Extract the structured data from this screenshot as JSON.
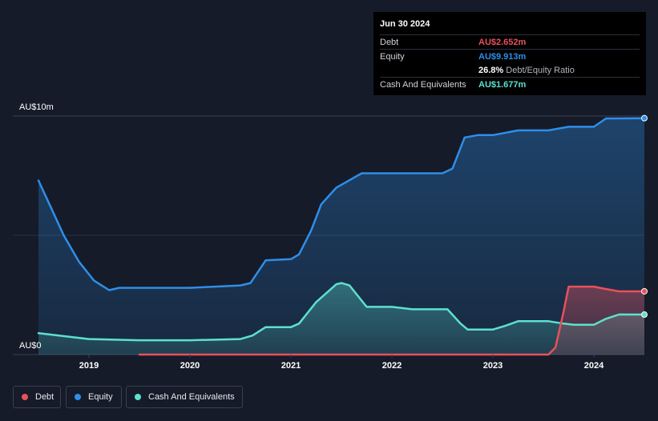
{
  "chart_data": {
    "type": "area",
    "title": "",
    "y_axis": {
      "min": 0,
      "max": 10,
      "unit": "AU$m",
      "tick_labels": [
        "AU$10m",
        "AU$0"
      ]
    },
    "x_axis": {
      "min": 2018.5,
      "max": 2024.5,
      "tick_labels": [
        "2019",
        "2020",
        "2021",
        "2022",
        "2023",
        "2024"
      ],
      "tick_values": [
        2019,
        2020,
        2021,
        2022,
        2023,
        2024
      ]
    },
    "series": [
      {
        "name": "Equity",
        "color": "#2e8ee8",
        "points": [
          [
            2018.5,
            7.3
          ],
          [
            2018.62,
            6.2
          ],
          [
            2018.75,
            5.0
          ],
          [
            2018.9,
            3.9
          ],
          [
            2019.05,
            3.1
          ],
          [
            2019.2,
            2.7
          ],
          [
            2019.3,
            2.8
          ],
          [
            2019.5,
            2.8
          ],
          [
            2019.75,
            2.8
          ],
          [
            2020.0,
            2.8
          ],
          [
            2020.25,
            2.85
          ],
          [
            2020.5,
            2.9
          ],
          [
            2020.6,
            3.0
          ],
          [
            2020.75,
            3.95
          ],
          [
            2021.0,
            4.0
          ],
          [
            2021.08,
            4.2
          ],
          [
            2021.2,
            5.2
          ],
          [
            2021.3,
            6.3
          ],
          [
            2021.45,
            7.0
          ],
          [
            2021.7,
            7.6
          ],
          [
            2022.0,
            7.6
          ],
          [
            2022.5,
            7.6
          ],
          [
            2022.6,
            7.8
          ],
          [
            2022.72,
            9.1
          ],
          [
            2022.85,
            9.2
          ],
          [
            2023.0,
            9.2
          ],
          [
            2023.25,
            9.4
          ],
          [
            2023.55,
            9.4
          ],
          [
            2023.75,
            9.55
          ],
          [
            2024.0,
            9.55
          ],
          [
            2024.12,
            9.9
          ],
          [
            2024.5,
            9.91
          ]
        ]
      },
      {
        "name": "Cash And Equivalents",
        "color": "#5ee0cf",
        "points": [
          [
            2018.5,
            0.9
          ],
          [
            2019.0,
            0.65
          ],
          [
            2019.5,
            0.6
          ],
          [
            2020.0,
            0.6
          ],
          [
            2020.5,
            0.65
          ],
          [
            2020.62,
            0.8
          ],
          [
            2020.75,
            1.15
          ],
          [
            2021.0,
            1.15
          ],
          [
            2021.08,
            1.3
          ],
          [
            2021.25,
            2.2
          ],
          [
            2021.45,
            2.95
          ],
          [
            2021.5,
            3.0
          ],
          [
            2021.58,
            2.9
          ],
          [
            2021.75,
            2.0
          ],
          [
            2022.0,
            2.0
          ],
          [
            2022.2,
            1.9
          ],
          [
            2022.55,
            1.9
          ],
          [
            2022.68,
            1.3
          ],
          [
            2022.75,
            1.05
          ],
          [
            2023.0,
            1.05
          ],
          [
            2023.12,
            1.2
          ],
          [
            2023.25,
            1.4
          ],
          [
            2023.55,
            1.4
          ],
          [
            2023.7,
            1.3
          ],
          [
            2023.8,
            1.25
          ],
          [
            2024.0,
            1.25
          ],
          [
            2024.12,
            1.5
          ],
          [
            2024.25,
            1.68
          ],
          [
            2024.5,
            1.677
          ]
        ]
      },
      {
        "name": "Debt",
        "color": "#e8505b",
        "points": [
          [
            2019.5,
            0.0
          ],
          [
            2023.55,
            0.0
          ],
          [
            2023.62,
            0.3
          ],
          [
            2023.7,
            1.8
          ],
          [
            2023.75,
            2.85
          ],
          [
            2023.8,
            2.85
          ],
          [
            2024.0,
            2.85
          ],
          [
            2024.12,
            2.75
          ],
          [
            2024.25,
            2.65
          ],
          [
            2024.5,
            2.652
          ]
        ]
      }
    ],
    "tooltip": {
      "date": "Jun 30 2024",
      "rows": [
        {
          "label": "Debt",
          "value": "AU$2.652m",
          "color": "#e8505b"
        },
        {
          "label": "Equity",
          "value": "AU$9.913m",
          "color": "#2e8ee8"
        },
        {
          "label": "",
          "value": "26.8%",
          "suffix": "Debt/Equity Ratio",
          "color": "#ffffff"
        },
        {
          "label": "Cash And Equivalents",
          "value": "AU$1.677m",
          "color": "#5ee0cf"
        }
      ]
    },
    "legend": [
      {
        "name": "Debt",
        "color": "#e8505b"
      },
      {
        "name": "Equity",
        "color": "#2e8ee8"
      },
      {
        "name": "Cash And Equivalents",
        "color": "#5ee0cf"
      }
    ]
  }
}
